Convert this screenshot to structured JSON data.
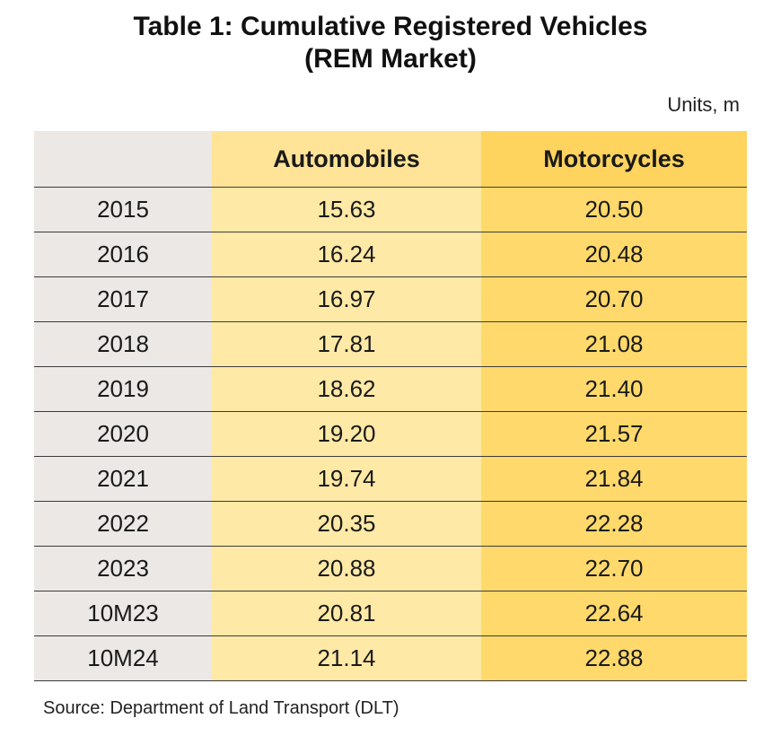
{
  "title": {
    "line1": "Table 1: Cumulative Registered Vehicles",
    "line2": "(REM Market)"
  },
  "units": "Units, m",
  "table": {
    "headers": [
      "",
      "Automobiles",
      "Motorcycles"
    ],
    "rows": [
      {
        "label": "2015",
        "automobiles": "15.63",
        "motorcycles": "20.50"
      },
      {
        "label": "2016",
        "automobiles": "16.24",
        "motorcycles": "20.48"
      },
      {
        "label": "2017",
        "automobiles": "16.97",
        "motorcycles": "20.70"
      },
      {
        "label": "2018",
        "automobiles": "17.81",
        "motorcycles": "21.08"
      },
      {
        "label": "2019",
        "automobiles": "18.62",
        "motorcycles": "21.40"
      },
      {
        "label": "2020",
        "automobiles": "19.20",
        "motorcycles": "21.57"
      },
      {
        "label": "2021",
        "automobiles": "19.74",
        "motorcycles": "21.84"
      },
      {
        "label": "2022",
        "automobiles": "20.35",
        "motorcycles": "22.28"
      },
      {
        "label": "2023",
        "automobiles": "20.88",
        "motorcycles": "22.70"
      },
      {
        "label": "10M23",
        "automobiles": "20.81",
        "motorcycles": "22.64"
      },
      {
        "label": "10M24",
        "automobiles": "21.14",
        "motorcycles": "22.88"
      }
    ]
  },
  "source": "Source: Department of Land Transport (DLT)",
  "colors": {
    "year_column": "#ebe8e6",
    "automobiles_column": "#ffe9a6",
    "motorcycles_column": "#ffd96b"
  }
}
